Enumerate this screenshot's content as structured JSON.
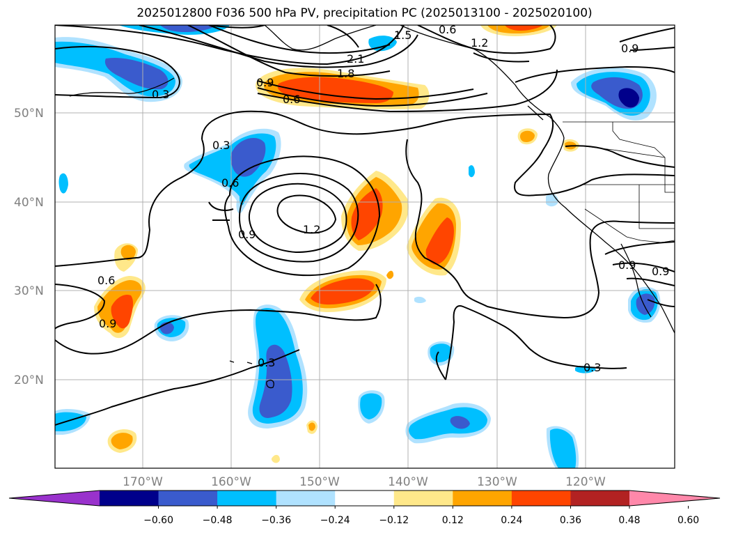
{
  "title": "2025012800 F036 500 hPa PV, precipitation PC (2025013100 - 2025020100)",
  "map": {
    "lat_labels": [
      "50°N",
      "40°N",
      "30°N",
      "20°N"
    ],
    "lon_labels": [
      "170°W",
      "160°W",
      "150°W",
      "140°W",
      "130°W",
      "120°W"
    ],
    "contour_labels": [
      "0.3",
      "0.3",
      "0.3",
      "0.3",
      "0.6",
      "0.6",
      "0.6",
      "0.9",
      "0.9",
      "0.9",
      "1.2",
      "1.2",
      "1.8",
      "2.1",
      "1.5",
      "0.9",
      "0.9",
      "0.9",
      "0.6"
    ]
  },
  "colorbar": {
    "ticks": [
      "−0.60",
      "−0.48",
      "−0.36",
      "−0.24",
      "−0.12",
      "0.12",
      "0.24",
      "0.36",
      "0.48",
      "0.60"
    ],
    "colors": [
      "#9932cc",
      "#00008b",
      "#3a5bcd",
      "#00bfff",
      "#b0e2ff",
      "#ffffff",
      "#ffe88a",
      "#ffa500",
      "#ff4500",
      "#b22222",
      "#ff88aa"
    ]
  },
  "colors": {
    "neg_strong": "#3a5bcd",
    "neg_mid": "#00bfff",
    "neg_weak": "#b0e2ff",
    "neg_max": "#00008b",
    "pos_weak": "#ffe88a",
    "pos_mid": "#ffa500",
    "pos_strong": "#ff4500",
    "grid": "#b0b0b0"
  }
}
